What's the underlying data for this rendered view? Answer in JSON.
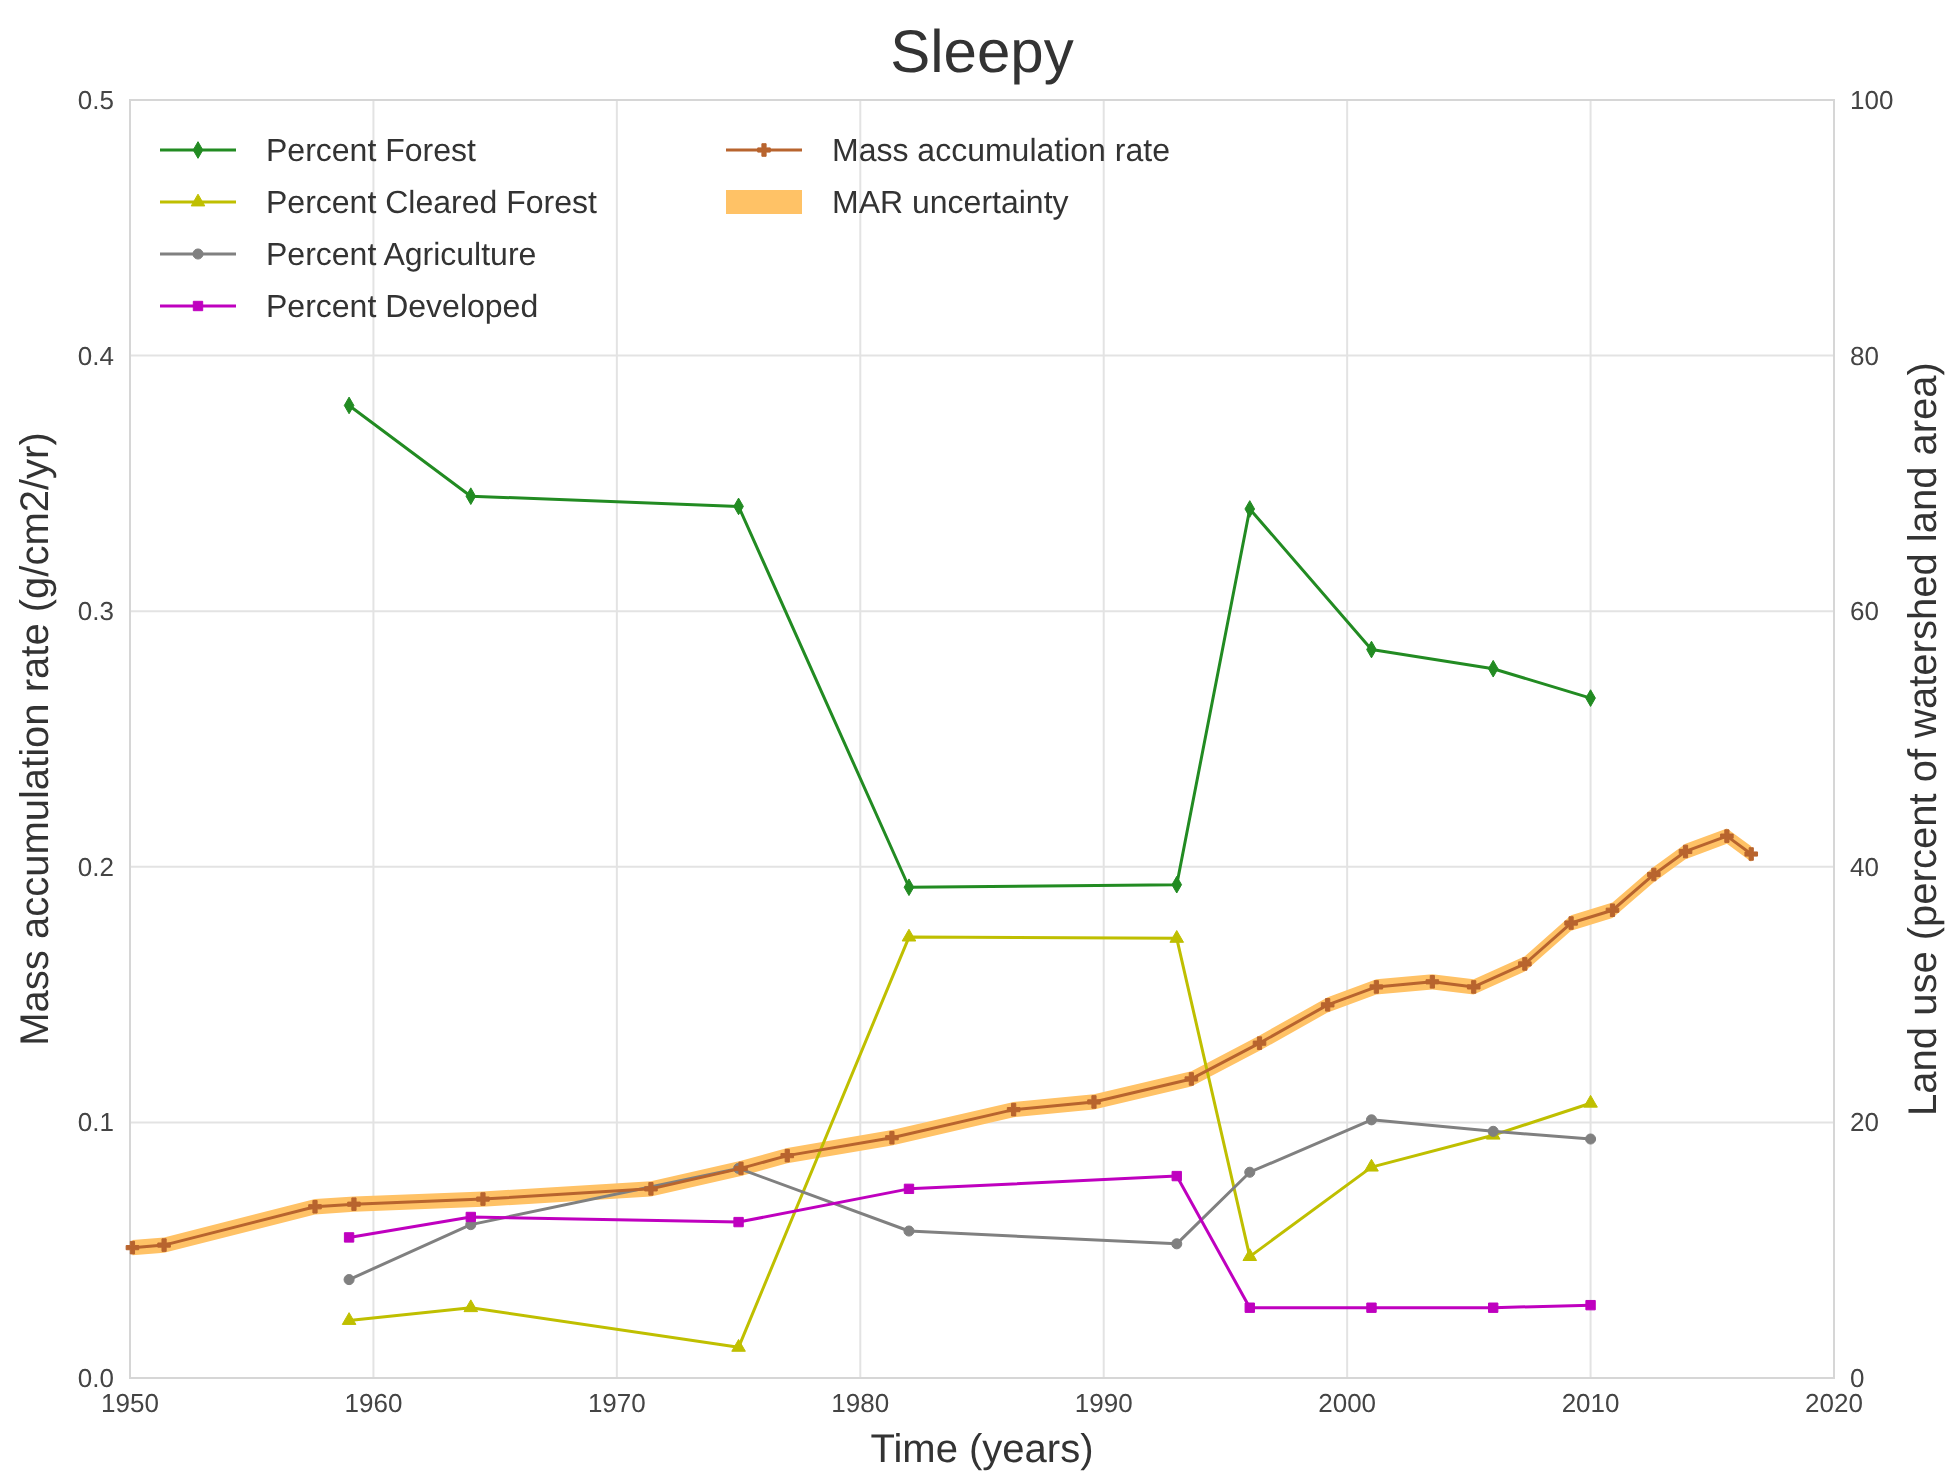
{
  "chart_data": {
    "type": "line",
    "title": "Sleepy",
    "xlabel": "Time (years)",
    "ylabel": "Mass accumulation rate (g/cm2/yr)",
    "y2label": "Land use (percent of watershed land area)",
    "x": [
      1959,
      1964,
      1975,
      1982,
      1993,
      1996,
      2001,
      2006,
      2010
    ],
    "series": [
      {
        "name": "Percent Forest",
        "color": "#228b22",
        "marker": "diamond",
        "axis": "y2",
        "values": [
          76.1,
          69.0,
          68.2,
          38.4,
          38.6,
          68.0,
          57.0,
          55.5,
          53.2
        ]
      },
      {
        "name": "Percent Cleared Forest",
        "color": "#bfbf00",
        "marker": "triangle",
        "axis": "y2",
        "values": [
          4.5,
          5.5,
          2.4,
          34.5,
          34.4,
          9.5,
          16.5,
          19.0,
          21.5
        ]
      },
      {
        "name": "Percent Agriculture",
        "color": "#808080",
        "marker": "circle",
        "axis": "y2",
        "values": [
          7.7,
          12.0,
          16.4,
          11.5,
          10.5,
          16.1,
          20.2,
          19.3,
          18.7
        ]
      },
      {
        "name": "Percent Developed",
        "color": "#bf00bf",
        "marker": "square",
        "axis": "y2",
        "values": [
          11.0,
          12.6,
          12.2,
          14.8,
          15.8,
          5.5,
          5.5,
          5.5,
          5.7
        ]
      },
      {
        "name": "Mass accumulation rate",
        "color": "#b8642e",
        "marker": "cross",
        "x": [
          1950.1,
          1951.4,
          1957.6,
          1959.2,
          1964.5,
          1971.4,
          1975.1,
          1977.0,
          1981.3,
          1986.3,
          1989.6,
          1993.6,
          1996.4,
          1999.2,
          2001.2,
          2003.5,
          2005.2,
          2007.3,
          2009.2,
          2010.9,
          2012.6,
          2013.9,
          2015.6,
          2016.6
        ],
        "values": [
          0.051,
          0.052,
          0.067,
          0.068,
          0.07,
          0.074,
          0.082,
          0.087,
          0.094,
          0.105,
          0.108,
          0.117,
          0.131,
          0.146,
          0.153,
          0.155,
          0.153,
          0.162,
          0.178,
          0.183,
          0.197,
          0.206,
          0.212,
          0.205
        ],
        "lower": [
          0.048,
          0.049,
          0.064,
          0.065,
          0.067,
          0.071,
          0.079,
          0.084,
          0.091,
          0.102,
          0.105,
          0.114,
          0.128,
          0.143,
          0.15,
          0.152,
          0.15,
          0.159,
          0.175,
          0.18,
          0.194,
          0.203,
          0.209,
          0.202
        ],
        "upper": [
          0.054,
          0.055,
          0.07,
          0.071,
          0.073,
          0.077,
          0.085,
          0.09,
          0.097,
          0.108,
          0.111,
          0.12,
          0.134,
          0.149,
          0.156,
          0.158,
          0.156,
          0.165,
          0.181,
          0.186,
          0.2,
          0.209,
          0.215,
          0.208
        ]
      },
      {
        "name": "MAR uncertainty",
        "type": "area",
        "color": "#ffc266",
        "values": [
          null,
          null,
          null,
          null,
          null,
          null,
          null,
          null,
          null
        ]
      }
    ],
    "xlim": [
      1950,
      2020
    ],
    "xticks": [
      1950,
      1960,
      1970,
      1980,
      1990,
      2000,
      2010,
      2020
    ],
    "ylim": [
      0,
      0.5
    ],
    "yticks": [
      {
        "value": 0,
        "label": "0.0"
      },
      0.1,
      0.2,
      0.3,
      0.4,
      0.5
    ],
    "y2lim": [
      0,
      100
    ],
    "y2ticks": [
      0,
      20,
      40,
      60,
      80,
      100
    ],
    "grid": true,
    "legend": "top left"
  }
}
